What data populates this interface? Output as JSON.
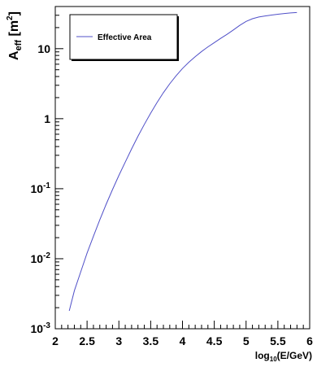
{
  "chart_data": {
    "type": "line",
    "title": "",
    "xlabel": {
      "base": "log",
      "sub": "10",
      "rest": "(E/GeV)"
    },
    "ylabel": {
      "base": "A",
      "sub": "eff",
      "unit_open": " [m",
      "sup": "2",
      "unit_close": "]"
    },
    "xlim": [
      2,
      6
    ],
    "ylim": [
      0.001,
      40
    ],
    "yscale": "log",
    "grid": false,
    "legend_position": "top-left",
    "x_ticks": [
      "2",
      "2.5",
      "3",
      "3.5",
      "4",
      "4.5",
      "5",
      "5.5",
      "6"
    ],
    "y_ticks": [
      {
        "value": 0.001,
        "base": "10",
        "exp": "-3"
      },
      {
        "value": 0.01,
        "base": "10",
        "exp": "-2"
      },
      {
        "value": 0.1,
        "base": "10",
        "exp": "-1"
      },
      {
        "value": 1,
        "base": "1",
        "exp": ""
      },
      {
        "value": 10,
        "base": "10",
        "exp": ""
      }
    ],
    "series": [
      {
        "name": "Effective Area",
        "color": "#5050c8",
        "x": [
          2.22,
          2.3,
          2.4,
          2.5,
          2.6,
          2.7,
          2.8,
          2.9,
          3.0,
          3.1,
          3.2,
          3.3,
          3.4,
          3.5,
          3.6,
          3.7,
          3.8,
          3.9,
          4.0,
          4.1,
          4.2,
          4.3,
          4.4,
          4.5,
          4.6,
          4.7,
          4.8,
          4.9,
          5.0,
          5.1,
          5.2,
          5.3,
          5.4,
          5.5,
          5.6,
          5.7,
          5.8
        ],
        "values": [
          0.0018,
          0.0035,
          0.0065,
          0.012,
          0.021,
          0.036,
          0.06,
          0.097,
          0.155,
          0.24,
          0.37,
          0.56,
          0.83,
          1.2,
          1.7,
          2.35,
          3.15,
          4.1,
          5.2,
          6.4,
          7.7,
          9.1,
          10.6,
          12.2,
          14.0,
          16.0,
          18.5,
          21.5,
          24.5,
          26.8,
          28.3,
          29.3,
          30.2,
          31.0,
          31.8,
          32.4,
          32.8
        ]
      }
    ]
  }
}
